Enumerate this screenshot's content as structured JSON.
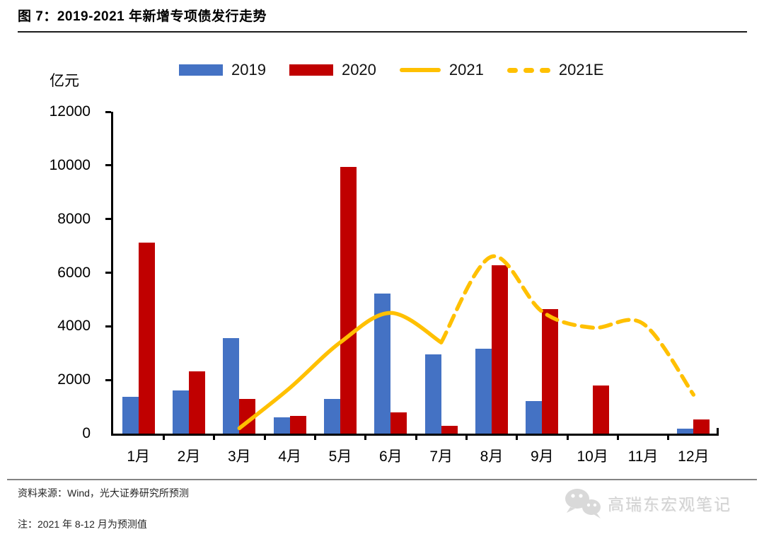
{
  "header": {
    "figure_title": "图 7：2019-2021 年新增专项债发行走势"
  },
  "chart_data": {
    "type": "combo-bar-line",
    "title": "图 7：2019-2021 年新增专项债发行走势",
    "unit_label": "亿元",
    "categories": [
      "1月",
      "2月",
      "3月",
      "4月",
      "5月",
      "6月",
      "7月",
      "8月",
      "9月",
      "10月",
      "11月",
      "12月"
    ],
    "ylim": [
      0,
      12000
    ],
    "yticks": [
      0,
      2000,
      4000,
      6000,
      8000,
      10000,
      12000
    ],
    "grid": false,
    "legend_position": "top",
    "series": [
      {
        "name": "2019",
        "type": "bar",
        "color": "#4472C4",
        "values": [
          1380,
          1620,
          3550,
          610,
          1290,
          5210,
          2950,
          3160,
          1210,
          0,
          0,
          180
        ]
      },
      {
        "name": "2020",
        "type": "bar",
        "color": "#C00000",
        "values": [
          7130,
          2330,
          1300,
          670,
          9950,
          790,
          300,
          6270,
          4630,
          1790,
          0,
          530
        ]
      },
      {
        "name": "2021",
        "type": "line",
        "line_style": "solid",
        "color": "#FFC000",
        "months": [
          3,
          4,
          5,
          6,
          7
        ],
        "values": [
          200,
          1700,
          3400,
          4500,
          3400
        ]
      },
      {
        "name": "2021E",
        "type": "line",
        "line_style": "dashed",
        "color": "#FFC000",
        "months": [
          7,
          8,
          9,
          10,
          11,
          12
        ],
        "values": [
          3400,
          6600,
          4550,
          3950,
          4100,
          1450
        ]
      }
    ]
  },
  "footer": {
    "source": "资料来源：Wind，光大证券研究所预测",
    "note": "注：2021 年 8-12 月为预测值",
    "watermark": "高瑞东宏观笔记"
  },
  "colors": {
    "bar_2019": "#4472C4",
    "bar_2020": "#C00000",
    "line_2021": "#FFC000",
    "divider_gray": "#838383"
  }
}
